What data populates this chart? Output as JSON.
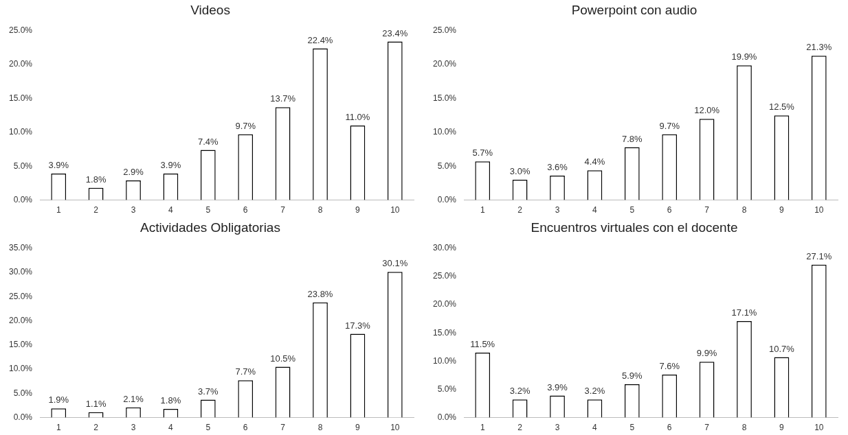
{
  "chart_data": [
    {
      "type": "bar",
      "title": "Videos",
      "categories": [
        "1",
        "2",
        "3",
        "4",
        "5",
        "6",
        "7",
        "8",
        "9",
        "10"
      ],
      "values": [
        3.9,
        1.8,
        2.9,
        3.9,
        7.4,
        9.7,
        13.7,
        22.4,
        11.0,
        23.4
      ],
      "value_labels": [
        "3.9%",
        "1.8%",
        "2.9%",
        "3.9%",
        "7.4%",
        "9.7%",
        "13.7%",
        "22.4%",
        "11.0%",
        "23.4%"
      ],
      "color": "#ffffff",
      "ylim": [
        0,
        25
      ],
      "yticks": [
        {
          "value": 0,
          "label": "0.0%"
        },
        {
          "value": 5,
          "label": "5.0%"
        },
        {
          "value": 10,
          "label": "10.0%"
        },
        {
          "value": 15,
          "label": "15.0%"
        },
        {
          "value": 20,
          "label": "20.0%"
        },
        {
          "value": 25,
          "label": "25.0%"
        }
      ],
      "grid": false,
      "legend": false
    },
    {
      "type": "bar",
      "title": "Powerpoint con audio",
      "categories": [
        "1",
        "2",
        "3",
        "4",
        "5",
        "6",
        "7",
        "8",
        "9",
        "10"
      ],
      "values": [
        5.7,
        3.0,
        3.6,
        4.4,
        7.8,
        9.7,
        12.0,
        19.9,
        12.5,
        21.3
      ],
      "value_labels": [
        "5.7%",
        "3.0%",
        "3.6%",
        "4.4%",
        "7.8%",
        "9.7%",
        "12.0%",
        "19.9%",
        "12.5%",
        "21.3%"
      ],
      "color": "#ffffff",
      "ylim": [
        0,
        25
      ],
      "yticks": [
        {
          "value": 0,
          "label": "0.0%"
        },
        {
          "value": 5,
          "label": "5.0%"
        },
        {
          "value": 10,
          "label": "10.0%"
        },
        {
          "value": 15,
          "label": "15.0%"
        },
        {
          "value": 20,
          "label": "20.0%"
        },
        {
          "value": 25,
          "label": "25.0%"
        }
      ],
      "grid": false,
      "legend": false
    },
    {
      "type": "bar",
      "title": "Actividades Obligatorias",
      "categories": [
        "1",
        "2",
        "3",
        "4",
        "5",
        "6",
        "7",
        "8",
        "9",
        "10"
      ],
      "values": [
        1.9,
        1.1,
        2.1,
        1.8,
        3.7,
        7.7,
        10.5,
        23.8,
        17.3,
        30.1
      ],
      "value_labels": [
        "1.9%",
        "1.1%",
        "2.1%",
        "1.8%",
        "3.7%",
        "7.7%",
        "10.5%",
        "23.8%",
        "17.3%",
        "30.1%"
      ],
      "color": "#ffffff",
      "ylim": [
        0,
        35
      ],
      "yticks": [
        {
          "value": 0,
          "label": "0.0%"
        },
        {
          "value": 5,
          "label": "5.0%"
        },
        {
          "value": 10,
          "label": "10.0%"
        },
        {
          "value": 15,
          "label": "15.0%"
        },
        {
          "value": 20,
          "label": "20.0%"
        },
        {
          "value": 25,
          "label": "25.0%"
        },
        {
          "value": 30,
          "label": "30.0%"
        },
        {
          "value": 35,
          "label": "35.0%"
        }
      ],
      "grid": false,
      "legend": false
    },
    {
      "type": "bar",
      "title": "Encuentros virtuales con el docente",
      "categories": [
        "1",
        "2",
        "3",
        "4",
        "5",
        "6",
        "7",
        "8",
        "9",
        "10"
      ],
      "values": [
        11.5,
        3.2,
        3.9,
        3.2,
        5.9,
        7.6,
        9.9,
        17.1,
        10.7,
        27.1
      ],
      "value_labels": [
        "11.5%",
        "3.2%",
        "3.9%",
        "3.2%",
        "5.9%",
        "7.6%",
        "9.9%",
        "17.1%",
        "10.7%",
        "27.1%"
      ],
      "color": "#ffffff",
      "ylim": [
        0,
        30
      ],
      "yticks": [
        {
          "value": 0,
          "label": "0.0%"
        },
        {
          "value": 5,
          "label": "5.0%"
        },
        {
          "value": 10,
          "label": "10.0%"
        },
        {
          "value": 15,
          "label": "15.0%"
        },
        {
          "value": 20,
          "label": "20.0%"
        },
        {
          "value": 25,
          "label": "25.0%"
        },
        {
          "value": 30,
          "label": "30.0%"
        }
      ],
      "grid": false,
      "legend": false
    }
  ]
}
